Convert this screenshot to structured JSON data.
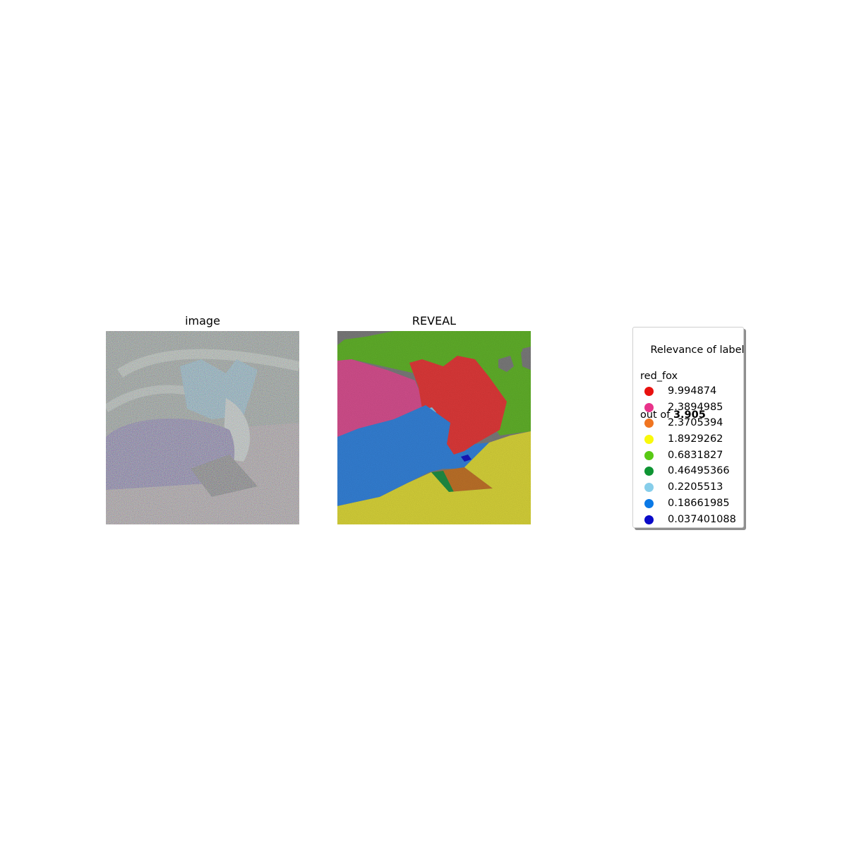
{
  "chart_data": [
    {
      "type": "image",
      "title": "image",
      "description_kind": "noisy photo"
    },
    {
      "type": "segmentation",
      "title": "REVEAL",
      "legend": {
        "title_line1": "Relevance of label",
        "title_line2": "red_fox",
        "title_line3_prefix": "out of ",
        "title_line3_value": "3.905",
        "entries": [
          {
            "value": "9.994874",
            "color": "#e8110f"
          },
          {
            "value": "2.3894985",
            "color": "#e8338a"
          },
          {
            "value": "2.3705394",
            "color": "#f07520"
          },
          {
            "value": "1.8929262",
            "color": "#f9f90b"
          },
          {
            "value": "0.6831827",
            "color": "#58c914"
          },
          {
            "value": "0.46495366",
            "color": "#0e9433"
          },
          {
            "value": "0.2205513",
            "color": "#87ceea"
          },
          {
            "value": "0.18661985",
            "color": "#0a79e6"
          },
          {
            "value": "0.037401088",
            "color": "#0a0ac8"
          }
        ]
      }
    }
  ]
}
